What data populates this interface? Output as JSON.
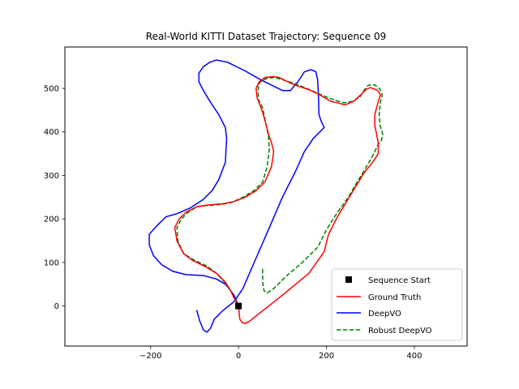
{
  "chart_data": {
    "type": "line",
    "title": "Real-World KITTI Dataset Trajectory: Sequence 09",
    "xlabel": "",
    "ylabel": "",
    "xlim": [
      -395,
      520
    ],
    "ylim": [
      -92,
      595
    ],
    "xticks": [
      -200,
      0,
      200,
      400
    ],
    "yticks": [
      0,
      100,
      200,
      300,
      400,
      500
    ],
    "xtick_labels": [
      "−200",
      "0",
      "200",
      "400"
    ],
    "ytick_labels": [
      "0",
      "100",
      "200",
      "300",
      "400",
      "500"
    ],
    "legend_position": "lower-right",
    "start_point": {
      "name": "Sequence Start",
      "x": 0,
      "y": 0,
      "color": "#000000"
    },
    "series": [
      {
        "name": "Ground Truth",
        "color": "#ff0000",
        "style": "solid",
        "points": [
          [
            0,
            0
          ],
          [
            3,
            -30
          ],
          [
            8,
            -38
          ],
          [
            15,
            -40
          ],
          [
            25,
            -35
          ],
          [
            50,
            -15
          ],
          [
            100,
            25
          ],
          [
            160,
            75
          ],
          [
            195,
            125
          ],
          [
            205,
            165
          ],
          [
            225,
            205
          ],
          [
            255,
            255
          ],
          [
            285,
            305
          ],
          [
            305,
            330
          ],
          [
            318,
            350
          ],
          [
            318,
            375
          ],
          [
            310,
            415
          ],
          [
            310,
            440
          ],
          [
            318,
            470
          ],
          [
            323,
            485
          ],
          [
            317,
            495
          ],
          [
            300,
            502
          ],
          [
            290,
            497
          ],
          [
            278,
            485
          ],
          [
            262,
            470
          ],
          [
            242,
            462
          ],
          [
            225,
            467
          ],
          [
            210,
            470
          ],
          [
            185,
            485
          ],
          [
            160,
            497
          ],
          [
            130,
            507
          ],
          [
            108,
            517
          ],
          [
            92,
            525
          ],
          [
            80,
            527
          ],
          [
            60,
            525
          ],
          [
            47,
            515
          ],
          [
            40,
            500
          ],
          [
            42,
            480
          ],
          [
            55,
            445
          ],
          [
            62,
            420
          ],
          [
            68,
            395
          ],
          [
            75,
            375
          ],
          [
            80,
            355
          ],
          [
            75,
            320
          ],
          [
            60,
            285
          ],
          [
            40,
            265
          ],
          [
            15,
            250
          ],
          [
            -10,
            240
          ],
          [
            -35,
            235
          ],
          [
            -70,
            232
          ],
          [
            -95,
            228
          ],
          [
            -120,
            215
          ],
          [
            -135,
            200
          ],
          [
            -145,
            180
          ],
          [
            -140,
            150
          ],
          [
            -125,
            120
          ],
          [
            -105,
            105
          ],
          [
            -75,
            90
          ],
          [
            -50,
            75
          ],
          [
            -30,
            55
          ],
          [
            -18,
            35
          ],
          [
            -10,
            18
          ],
          [
            0,
            0
          ]
        ]
      },
      {
        "name": "DeepVO",
        "color": "#0000ff",
        "style": "solid",
        "points": [
          [
            -95,
            -10
          ],
          [
            -88,
            -35
          ],
          [
            -80,
            -55
          ],
          [
            -72,
            -60
          ],
          [
            -64,
            -52
          ],
          [
            -55,
            -30
          ],
          [
            -35,
            -10
          ],
          [
            -10,
            10
          ],
          [
            10,
            40
          ],
          [
            40,
            110
          ],
          [
            70,
            180
          ],
          [
            100,
            250
          ],
          [
            130,
            310
          ],
          [
            150,
            355
          ],
          [
            170,
            385
          ],
          [
            195,
            410
          ],
          [
            188,
            425
          ],
          [
            183,
            440
          ],
          [
            182,
            480
          ],
          [
            180,
            520
          ],
          [
            176,
            538
          ],
          [
            165,
            543
          ],
          [
            150,
            538
          ],
          [
            135,
            515
          ],
          [
            118,
            495
          ],
          [
            100,
            495
          ],
          [
            80,
            505
          ],
          [
            50,
            520
          ],
          [
            15,
            540
          ],
          [
            -25,
            560
          ],
          [
            -50,
            565
          ],
          [
            -65,
            560
          ],
          [
            -80,
            550
          ],
          [
            -90,
            535
          ],
          [
            -90,
            515
          ],
          [
            -80,
            495
          ],
          [
            -65,
            470
          ],
          [
            -45,
            440
          ],
          [
            -30,
            410
          ],
          [
            -27,
            385
          ],
          [
            -30,
            330
          ],
          [
            -45,
            290
          ],
          [
            -60,
            265
          ],
          [
            -80,
            245
          ],
          [
            -110,
            225
          ],
          [
            -140,
            212
          ],
          [
            -165,
            205
          ],
          [
            -185,
            185
          ],
          [
            -203,
            165
          ],
          [
            -203,
            140
          ],
          [
            -193,
            115
          ],
          [
            -175,
            95
          ],
          [
            -150,
            80
          ],
          [
            -120,
            72
          ],
          [
            -80,
            70
          ],
          [
            -50,
            62
          ],
          [
            -30,
            50
          ],
          [
            -10,
            25
          ],
          [
            0,
            0
          ]
        ]
      },
      {
        "name": "Robust DeepVO",
        "color": "#008000",
        "style": "dashed",
        "points": [
          [
            55,
            85
          ],
          [
            55,
            55
          ],
          [
            58,
            35
          ],
          [
            65,
            30
          ],
          [
            80,
            40
          ],
          [
            110,
            70
          ],
          [
            145,
            100
          ],
          [
            180,
            135
          ],
          [
            200,
            175
          ],
          [
            225,
            215
          ],
          [
            250,
            250
          ],
          [
            270,
            285
          ],
          [
            285,
            310
          ],
          [
            300,
            335
          ],
          [
            310,
            355
          ],
          [
            318,
            372
          ],
          [
            325,
            380
          ],
          [
            328,
            395
          ],
          [
            322,
            415
          ],
          [
            320,
            440
          ],
          [
            323,
            470
          ],
          [
            327,
            485
          ],
          [
            322,
            498
          ],
          [
            310,
            508
          ],
          [
            295,
            507
          ],
          [
            285,
            495
          ],
          [
            276,
            480
          ],
          [
            260,
            470
          ],
          [
            240,
            467
          ],
          [
            222,
            472
          ],
          [
            205,
            478
          ],
          [
            182,
            488
          ],
          [
            155,
            500
          ],
          [
            125,
            512
          ],
          [
            100,
            520
          ],
          [
            80,
            525
          ],
          [
            62,
            522
          ],
          [
            50,
            515
          ],
          [
            45,
            505
          ],
          [
            45,
            490
          ],
          [
            45,
            475
          ],
          [
            55,
            455
          ],
          [
            62,
            420
          ],
          [
            68,
            390
          ],
          [
            70,
            360
          ],
          [
            65,
            320
          ],
          [
            55,
            285
          ],
          [
            35,
            265
          ],
          [
            10,
            250
          ],
          [
            -15,
            238
          ],
          [
            -40,
            233
          ],
          [
            -70,
            231
          ],
          [
            -95,
            228
          ],
          [
            -115,
            215
          ],
          [
            -130,
            200
          ],
          [
            -140,
            180
          ],
          [
            -138,
            150
          ],
          [
            -125,
            120
          ],
          [
            -100,
            105
          ],
          [
            -72,
            92
          ],
          [
            -50,
            75
          ],
          [
            -32,
            55
          ],
          [
            -18,
            35
          ],
          [
            -8,
            15
          ],
          [
            0,
            0
          ]
        ]
      }
    ]
  }
}
